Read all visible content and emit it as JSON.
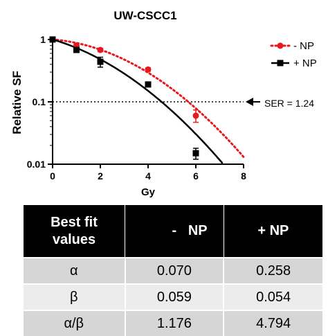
{
  "chart_data": {
    "type": "scatter",
    "title": "UW-CSCC1",
    "xlabel": "Gy",
    "ylabel": "Relative SF",
    "xlim": [
      0,
      8
    ],
    "ylim": [
      0.01,
      1
    ],
    "yscale": "log",
    "xticks": [
      "0",
      "2",
      "4",
      "6",
      "8"
    ],
    "yticks": [
      "0.01",
      "0.1",
      "1"
    ],
    "grid": false,
    "legend_position": "top-right",
    "series": [
      {
        "name": "- NP",
        "color": "#e8191c",
        "marker": "circle",
        "fit_line": "dotted",
        "x": [
          0,
          1,
          2,
          4,
          6
        ],
        "y": [
          1.0,
          0.8,
          0.68,
          0.33,
          0.06
        ],
        "yerr_low": [
          0.94,
          0.75,
          0.64,
          0.31,
          0.047
        ],
        "yerr_high": [
          1.06,
          0.86,
          0.72,
          0.35,
          0.074
        ],
        "fit_alpha": 0.07,
        "fit_beta": 0.059
      },
      {
        "name": "+ NP",
        "color": "#000000",
        "marker": "square",
        "fit_line": "solid",
        "x": [
          0,
          1,
          2,
          4,
          6
        ],
        "y": [
          1.0,
          0.68,
          0.44,
          0.19,
          0.015
        ],
        "yerr_low": [
          0.94,
          0.64,
          0.36,
          0.18,
          0.012
        ],
        "yerr_high": [
          1.06,
          0.73,
          0.52,
          0.2,
          0.018
        ],
        "fit_alpha": 0.258,
        "fit_beta": 0.054
      }
    ],
    "reference_line": {
      "y": 0.1,
      "style": "dotted"
    },
    "annotation": {
      "text": "SER = 1.24",
      "at_y": 0.1
    }
  },
  "table": {
    "header": [
      "Best fit values",
      "-   NP",
      "+ NP"
    ],
    "rows": [
      [
        "α",
        "0.070",
        "0.258"
      ],
      [
        "β",
        "0.059",
        "0.054"
      ],
      [
        "α/β",
        "1.176",
        "4.794"
      ]
    ]
  }
}
